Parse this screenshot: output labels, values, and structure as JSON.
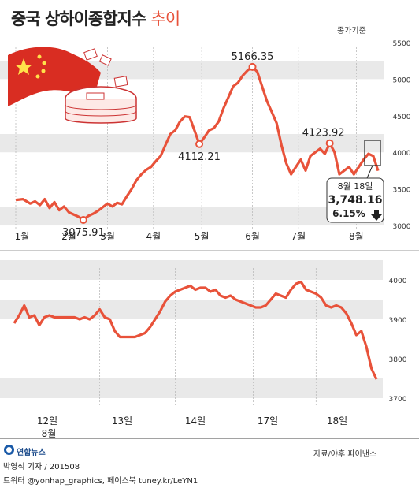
{
  "title": "중국 상하이종합지수",
  "title_suffix": "추이",
  "basis_label": "종가기준",
  "credits": {
    "reporter": "박영석 기자 / 201508",
    "social": "트위터 @yonhap_graphics, 페이스북 tuney.kr/LeYN1",
    "logo": "연합뉴스",
    "source": "자료/야후 파이낸스"
  },
  "colors": {
    "line": "#e8523a",
    "band": "#e9e9e9",
    "accent": "#e8523a"
  },
  "chart_data": [
    {
      "type": "line",
      "title": "",
      "ylim": [
        2850,
        5650
      ],
      "y_ticks": [
        3000,
        3500,
        4000,
        4500,
        5000,
        5500
      ],
      "grid": "alternating horizontal bands",
      "x_months": [
        "1월",
        "2월",
        "3월",
        "4월",
        "5월",
        "6월",
        "7월",
        "8월"
      ],
      "points": [
        [
          0,
          3350
        ],
        [
          3,
          3360
        ],
        [
          6,
          3300
        ],
        [
          8,
          3330
        ],
        [
          10,
          3280
        ],
        [
          12,
          3360
        ],
        [
          14,
          3240
        ],
        [
          16,
          3320
        ],
        [
          18,
          3210
        ],
        [
          20,
          3260
        ],
        [
          22,
          3180
        ],
        [
          24,
          3150
        ],
        [
          26,
          3120
        ],
        [
          28,
          3076
        ],
        [
          30,
          3130
        ],
        [
          32,
          3160
        ],
        [
          34,
          3200
        ],
        [
          36,
          3250
        ],
        [
          38,
          3300
        ],
        [
          40,
          3260
        ],
        [
          42,
          3310
        ],
        [
          44,
          3290
        ],
        [
          46,
          3400
        ],
        [
          48,
          3500
        ],
        [
          50,
          3620
        ],
        [
          52,
          3700
        ],
        [
          54,
          3760
        ],
        [
          56,
          3800
        ],
        [
          58,
          3880
        ],
        [
          60,
          3950
        ],
        [
          62,
          4100
        ],
        [
          64,
          4250
        ],
        [
          66,
          4300
        ],
        [
          68,
          4420
        ],
        [
          70,
          4490
        ],
        [
          72,
          4480
        ],
        [
          74,
          4300
        ],
        [
          76,
          4112
        ],
        [
          78,
          4200
        ],
        [
          80,
          4300
        ],
        [
          82,
          4330
        ],
        [
          84,
          4420
        ],
        [
          86,
          4600
        ],
        [
          88,
          4750
        ],
        [
          90,
          4900
        ],
        [
          92,
          4950
        ],
        [
          94,
          5050
        ],
        [
          96,
          5120
        ],
        [
          98,
          5166
        ],
        [
          100,
          5100
        ],
        [
          102,
          4900
        ],
        [
          104,
          4700
        ],
        [
          106,
          4550
        ],
        [
          108,
          4400
        ],
        [
          110,
          4100
        ],
        [
          112,
          3850
        ],
        [
          114,
          3700
        ],
        [
          116,
          3800
        ],
        [
          118,
          3900
        ],
        [
          120,
          3750
        ],
        [
          122,
          3950
        ],
        [
          124,
          4000
        ],
        [
          126,
          4050
        ],
        [
          128,
          3980
        ],
        [
          130,
          4124
        ],
        [
          132,
          4000
        ],
        [
          134,
          3700
        ],
        [
          136,
          3750
        ],
        [
          138,
          3800
        ],
        [
          140,
          3700
        ],
        [
          142,
          3800
        ],
        [
          144,
          3900
        ],
        [
          146,
          3980
        ],
        [
          148,
          3950
        ],
        [
          150,
          3748
        ]
      ],
      "month_positions": [
        0,
        22,
        38,
        57,
        77,
        98,
        117,
        141
      ],
      "annotations": [
        {
          "x": 28,
          "y": 3075.91,
          "label": "3075.91"
        },
        {
          "x": 76,
          "y": 4112.21,
          "label": "4112.21"
        },
        {
          "x": 98,
          "y": 5166.35,
          "label": "5166.35"
        },
        {
          "x": 130,
          "y": 4123.92,
          "label": "4123.92"
        }
      ],
      "callout": {
        "date": "8월 18일",
        "value": "3,748.16",
        "change": "6.15%",
        "direction": "down"
      }
    },
    {
      "type": "line",
      "title": "",
      "ylim": [
        3680,
        4030
      ],
      "y_ticks": [
        3700,
        3800,
        3900,
        4000
      ],
      "grid": "alternating horizontal bands",
      "x_days": [
        "12일",
        "13일",
        "14일",
        "17일",
        "18일"
      ],
      "x_sublabel": "8월",
      "points": [
        [
          0,
          3890
        ],
        [
          2,
          3910
        ],
        [
          4,
          3935
        ],
        [
          6,
          3905
        ],
        [
          8,
          3910
        ],
        [
          10,
          3885
        ],
        [
          12,
          3905
        ],
        [
          14,
          3910
        ],
        [
          16,
          3905
        ],
        [
          18,
          3905
        ],
        [
          20,
          3905
        ],
        [
          22,
          3905
        ],
        [
          24,
          3905
        ],
        [
          26,
          3900
        ],
        [
          28,
          3905
        ],
        [
          30,
          3900
        ],
        [
          32,
          3910
        ],
        [
          34,
          3925
        ],
        [
          36,
          3905
        ],
        [
          38,
          3900
        ],
        [
          40,
          3870
        ],
        [
          42,
          3855
        ],
        [
          44,
          3855
        ],
        [
          46,
          3855
        ],
        [
          48,
          3855
        ],
        [
          50,
          3860
        ],
        [
          52,
          3865
        ],
        [
          54,
          3880
        ],
        [
          56,
          3900
        ],
        [
          58,
          3920
        ],
        [
          60,
          3945
        ],
        [
          62,
          3960
        ],
        [
          64,
          3970
        ],
        [
          66,
          3975
        ],
        [
          68,
          3980
        ],
        [
          70,
          3985
        ],
        [
          72,
          3975
        ],
        [
          74,
          3980
        ],
        [
          76,
          3980
        ],
        [
          78,
          3970
        ],
        [
          80,
          3975
        ],
        [
          82,
          3960
        ],
        [
          84,
          3955
        ],
        [
          86,
          3960
        ],
        [
          88,
          3950
        ],
        [
          90,
          3945
        ],
        [
          92,
          3940
        ],
        [
          94,
          3935
        ],
        [
          96,
          3930
        ],
        [
          98,
          3930
        ],
        [
          100,
          3935
        ],
        [
          102,
          3950
        ],
        [
          104,
          3965
        ],
        [
          106,
          3960
        ],
        [
          108,
          3955
        ],
        [
          110,
          3975
        ],
        [
          112,
          3990
        ],
        [
          114,
          3995
        ],
        [
          116,
          3975
        ],
        [
          118,
          3970
        ],
        [
          120,
          3965
        ],
        [
          122,
          3955
        ],
        [
          124,
          3935
        ],
        [
          126,
          3930
        ],
        [
          128,
          3935
        ],
        [
          130,
          3930
        ],
        [
          132,
          3915
        ],
        [
          134,
          3890
        ],
        [
          136,
          3860
        ],
        [
          138,
          3870
        ],
        [
          140,
          3830
        ],
        [
          142,
          3775
        ],
        [
          144,
          3748
        ]
      ],
      "day_positions": [
        0,
        34,
        64,
        95,
        120
      ]
    }
  ]
}
